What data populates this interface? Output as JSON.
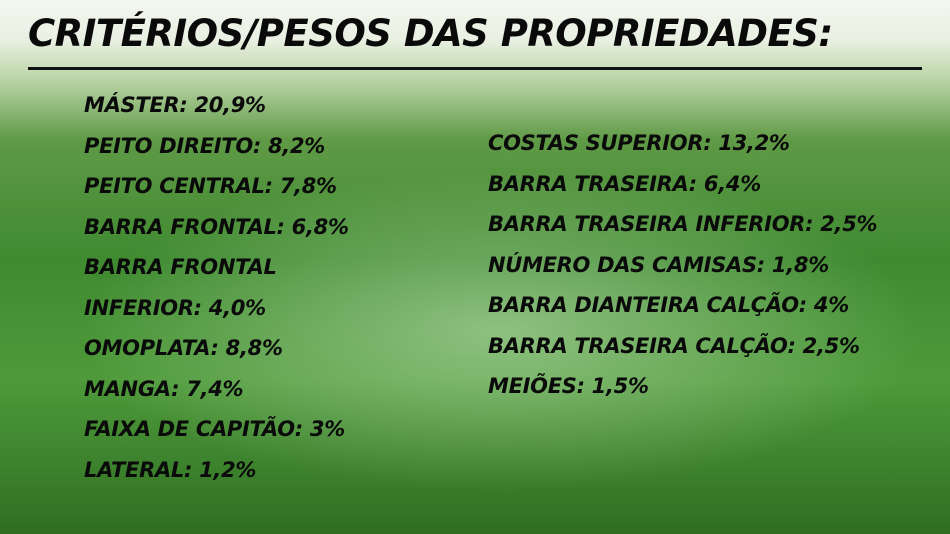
{
  "title": "CRITÉRIOS/PESOS DAS PROPRIEDADES:",
  "left_column": [
    "MÁSTER: 20,9%",
    "PEITO DIREITO: 8,2%",
    "PEITO CENTRAL: 7,8%",
    "BARRA FRONTAL: 6,8%",
    "BARRA FRONTAL",
    "INFERIOR: 4,0%",
    "OMOPLATA: 8,8%",
    "MANGA: 7,4%",
    "FAIXA DE CAPITÃO: 3%",
    "LATERAL: 1,2%"
  ],
  "right_column": [
    "COSTAS SUPERIOR: 13,2%",
    "BARRA TRASEIRA: 6,4%",
    "BARRA TRASEIRA INFERIOR: 2,5%",
    "NÚMERO DAS CAMISAS: 1,8%",
    "BARRA DIANTEIRA CALÇÃO: 4%",
    "BARRA TRASEIRA CALÇÃO: 2,5%",
    "MEIÕES: 1,5%"
  ]
}
